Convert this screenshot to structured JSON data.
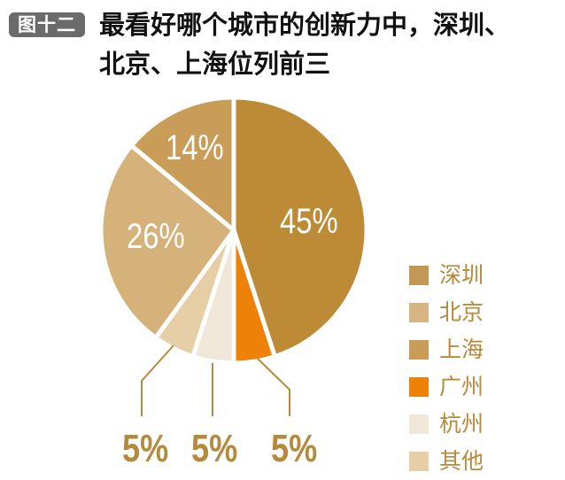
{
  "header": {
    "badge": "图十二",
    "title_line1": "最看好哪个城市的创新力中，深圳、",
    "title_line2": "北京、上海位列前三"
  },
  "chart_data": {
    "type": "pie",
    "title": "最看好哪个城市的创新力中，深圳、北京、上海位列前三",
    "figure_label": "图十二",
    "categories": [
      "深圳",
      "广州",
      "杭州",
      "其他",
      "北京",
      "上海"
    ],
    "values": [
      45,
      5,
      5,
      5,
      26,
      14
    ],
    "unit": "%",
    "colors": {
      "深圳": "#bd8b36",
      "广州": "#ee8209",
      "杭州": "#f1e7d8",
      "其他": "#e6cfa6",
      "北京": "#d5b27a",
      "上海": "#c99c57"
    },
    "legend_order": [
      "深圳",
      "北京",
      "上海",
      "广州",
      "杭州",
      "其他"
    ],
    "legend_position": "right",
    "labels": {
      "深圳": "45%",
      "北京": "26%",
      "上海": "14%",
      "其他": "5%",
      "杭州": "5%",
      "广州": "5%"
    }
  },
  "legend": [
    {
      "label": "深圳",
      "color": "#c39854"
    },
    {
      "label": "北京",
      "color": "#d6b483"
    },
    {
      "label": "上海",
      "color": "#c99c57"
    },
    {
      "label": "广州",
      "color": "#ee8209"
    },
    {
      "label": "杭州",
      "color": "#f1e7d8"
    },
    {
      "label": "其他",
      "color": "#e6cfa6"
    }
  ],
  "slice_labels": {
    "shenzhen": "45%",
    "beijing": "26%",
    "shanghai": "14%",
    "other": "5%",
    "hangzhou": "5%",
    "guangzhou": "5%"
  }
}
